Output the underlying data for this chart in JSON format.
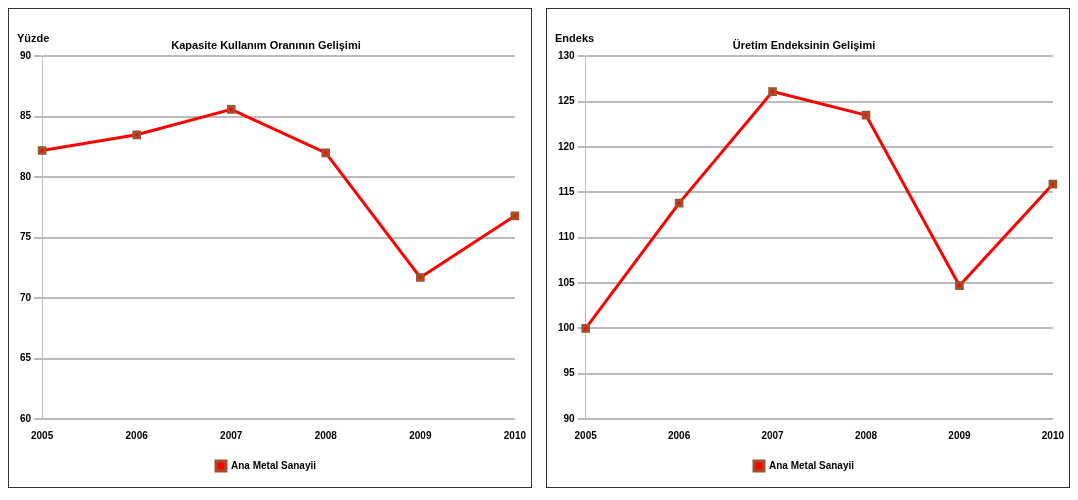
{
  "chart_data": [
    {
      "type": "line",
      "title": "Kapasite Kullanım Oranının Gelişimi",
      "ylabel": "Yüzde",
      "categories": [
        "2005",
        "2006",
        "2007",
        "2008",
        "2009",
        "2010"
      ],
      "series": [
        {
          "name": "Ana Metal Sanayii",
          "color": "#ff0000",
          "values": [
            82.2,
            83.5,
            85.6,
            82.0,
            71.7,
            76.8
          ]
        }
      ],
      "ylim": [
        60,
        90
      ],
      "yticks": [
        60,
        65,
        70,
        75,
        80,
        85,
        90
      ],
      "grid": "y",
      "legend": "bottom",
      "marker": "square",
      "line_style": "solid"
    },
    {
      "type": "line",
      "title": "Üretim Endeksinin Gelişimi",
      "ylabel": "Endeks",
      "categories": [
        "2005",
        "2006",
        "2007",
        "2008",
        "2009",
        "2010"
      ],
      "series": [
        {
          "name": "Ana Metal Sanayii",
          "color": "#ff0000",
          "values": [
            100.0,
            113.8,
            126.1,
            123.5,
            104.7,
            115.9
          ]
        }
      ],
      "ylim": [
        90,
        130
      ],
      "yticks": [
        90,
        95,
        100,
        105,
        110,
        115,
        120,
        125,
        130
      ],
      "grid": "y",
      "legend": "bottom",
      "marker": "square",
      "line_style": "solid"
    }
  ]
}
